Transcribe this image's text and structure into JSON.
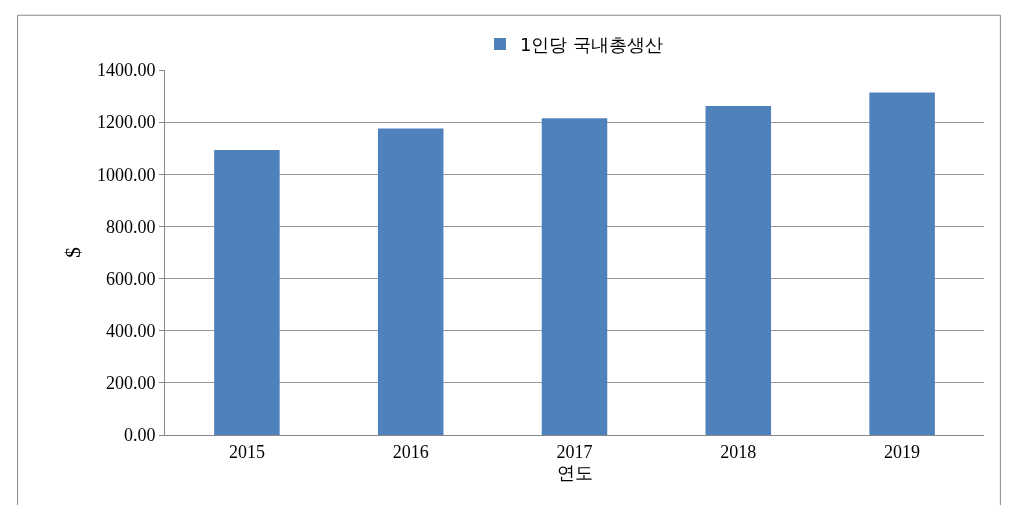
{
  "chart_data": {
    "type": "bar",
    "xlabel": "연도",
    "ylabel": "$",
    "categories": [
      "2015",
      "2016",
      "2017",
      "2018",
      "2019"
    ],
    "series": [
      {
        "name": "1인당 국내총생산",
        "color": "#4f81bd",
        "values": [
          1093,
          1176,
          1215,
          1262,
          1314
        ]
      }
    ],
    "ylim": [
      0,
      1400
    ],
    "yticks": [
      {
        "value": 0,
        "label": "0.00"
      },
      {
        "value": 200,
        "label": "200.00"
      },
      {
        "value": 400,
        "label": "400.00"
      },
      {
        "value": 600,
        "label": "600.00"
      },
      {
        "value": 800,
        "label": "800.00"
      },
      {
        "value": 1000,
        "label": "1000.00"
      },
      {
        "value": 1200,
        "label": "1200.00"
      },
      {
        "value": 1400,
        "label": "1400.00"
      }
    ],
    "grid": "y",
    "legend": "top"
  }
}
